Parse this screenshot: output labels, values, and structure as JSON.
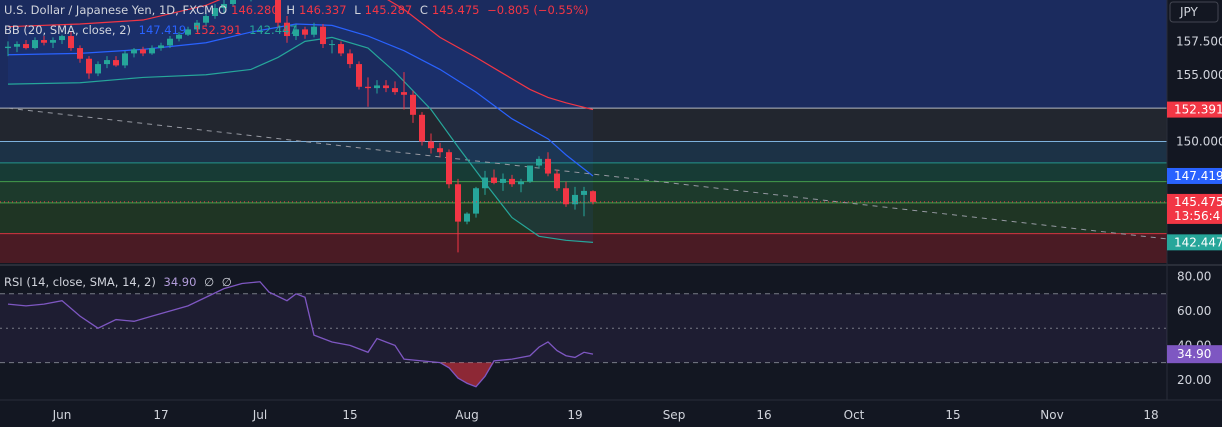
{
  "header": {
    "symbol": "U.S. Dollar / Japanese Yen, 1D, FXCM",
    "o_label": "O",
    "o_value": "146.280",
    "h_label": "H",
    "h_value": "146.337",
    "l_label": "L",
    "l_value": "145.287",
    "c_label": "C",
    "c_value": "145.475",
    "change": "−0.805 (−0.55%)"
  },
  "bb_legend": {
    "label": "BB (20, SMA, close, 2)",
    "basis": "147.419",
    "upper": "152.391",
    "lower": "142.447"
  },
  "rsi_legend": {
    "label": "RSI (14, close, SMA, 14, 2)",
    "value": "34.90",
    "extra1": "∅",
    "extra2": "∅"
  },
  "currency": "JPY",
  "colors": {
    "up": "#26a69a",
    "down": "#f23645",
    "basis": "#2962ff",
    "upper": "#f23645",
    "lower": "#26a69a",
    "rsi": "#7e57c2",
    "bg": "#131722",
    "text": "#d1d4dc"
  },
  "chart_data": [
    {
      "type": "candlestick",
      "title": "U.S. Dollar / Japanese Yen, 1D, FXCM",
      "y_ticks": [
        "157.500",
        "155.000",
        "150.000"
      ],
      "ylim": [
        140.9,
        160.6
      ],
      "x_ticks": [
        "Jun",
        "17",
        "Jul",
        "15",
        "Aug",
        "19",
        "Sep",
        "16",
        "Oct",
        "15",
        "Nov",
        "18"
      ],
      "price_labels": [
        {
          "value": 152.391,
          "text": "152.391",
          "color": "#f23645"
        },
        {
          "value": 147.419,
          "text": "147.419",
          "color": "#2962ff"
        },
        {
          "value": 145.475,
          "text": "145.475",
          "color": "#f23645",
          "sub": "13:56:4"
        },
        {
          "value": 142.447,
          "text": "142.447",
          "color": "#26a69a"
        }
      ],
      "horizontal_levels": [
        152.5,
        150.0,
        148.4,
        147.0,
        145.4,
        143.1
      ],
      "trendline": {
        "start": {
          "index": 0,
          "value": 152.5
        },
        "end": {
          "index": 138,
          "value": 142.0
        }
      },
      "candles": [
        {
          "o": 157.0,
          "h": 157.5,
          "l": 156.4,
          "c": 157.1
        },
        {
          "o": 157.1,
          "h": 157.5,
          "l": 156.7,
          "c": 157.3
        },
        {
          "o": 157.3,
          "h": 157.6,
          "l": 156.9,
          "c": 157.0
        },
        {
          "o": 157.0,
          "h": 157.8,
          "l": 156.9,
          "c": 157.6
        },
        {
          "o": 157.6,
          "h": 157.9,
          "l": 157.2,
          "c": 157.4
        },
        {
          "o": 157.4,
          "h": 157.8,
          "l": 157.0,
          "c": 157.6
        },
        {
          "o": 157.6,
          "h": 158.0,
          "l": 157.3,
          "c": 157.9
        },
        {
          "o": 157.9,
          "h": 158.2,
          "l": 156.8,
          "c": 157.0
        },
        {
          "o": 157.0,
          "h": 157.2,
          "l": 155.9,
          "c": 156.2
        },
        {
          "o": 156.2,
          "h": 156.4,
          "l": 154.7,
          "c": 155.1
        },
        {
          "o": 155.1,
          "h": 156.0,
          "l": 154.9,
          "c": 155.8
        },
        {
          "o": 155.8,
          "h": 156.4,
          "l": 155.5,
          "c": 156.1
        },
        {
          "o": 156.1,
          "h": 156.4,
          "l": 155.6,
          "c": 155.7
        },
        {
          "o": 155.7,
          "h": 156.8,
          "l": 155.5,
          "c": 156.6
        },
        {
          "o": 156.6,
          "h": 157.0,
          "l": 156.3,
          "c": 156.9
        },
        {
          "o": 156.9,
          "h": 157.1,
          "l": 156.4,
          "c": 156.6
        },
        {
          "o": 156.6,
          "h": 157.2,
          "l": 156.5,
          "c": 157.0
        },
        {
          "o": 157.0,
          "h": 157.4,
          "l": 156.8,
          "c": 157.2
        },
        {
          "o": 157.2,
          "h": 157.9,
          "l": 157.0,
          "c": 157.7
        },
        {
          "o": 157.7,
          "h": 158.2,
          "l": 157.5,
          "c": 158.0
        },
        {
          "o": 158.0,
          "h": 158.6,
          "l": 157.9,
          "c": 158.4
        },
        {
          "o": 158.4,
          "h": 159.1,
          "l": 158.2,
          "c": 158.9
        },
        {
          "o": 158.9,
          "h": 159.6,
          "l": 158.7,
          "c": 159.4
        },
        {
          "o": 159.4,
          "h": 160.3,
          "l": 159.2,
          "c": 160.0
        },
        {
          "o": 160.0,
          "h": 160.6,
          "l": 159.6,
          "c": 160.3
        },
        {
          "o": 160.3,
          "h": 161.5,
          "l": 160.1,
          "c": 161.2
        },
        {
          "o": 161.2,
          "h": 161.8,
          "l": 160.6,
          "c": 160.8
        },
        {
          "o": 160.8,
          "h": 161.6,
          "l": 160.5,
          "c": 161.3
        },
        {
          "o": 161.3,
          "h": 162.0,
          "l": 161.1,
          "c": 161.6
        },
        {
          "o": 161.6,
          "h": 161.8,
          "l": 160.6,
          "c": 160.7
        },
        {
          "o": 160.7,
          "h": 160.9,
          "l": 158.5,
          "c": 158.9
        },
        {
          "o": 158.9,
          "h": 159.4,
          "l": 157.4,
          "c": 157.9
        },
        {
          "o": 157.9,
          "h": 158.8,
          "l": 157.6,
          "c": 158.4
        },
        {
          "o": 158.4,
          "h": 158.6,
          "l": 157.7,
          "c": 158.0
        },
        {
          "o": 158.0,
          "h": 158.9,
          "l": 157.8,
          "c": 158.6
        },
        {
          "o": 158.6,
          "h": 158.8,
          "l": 157.0,
          "c": 157.3
        },
        {
          "o": 157.3,
          "h": 157.6,
          "l": 156.6,
          "c": 157.3
        },
        {
          "o": 157.3,
          "h": 157.5,
          "l": 156.4,
          "c": 156.6
        },
        {
          "o": 156.6,
          "h": 156.9,
          "l": 155.5,
          "c": 155.8
        },
        {
          "o": 155.8,
          "h": 156.0,
          "l": 153.9,
          "c": 154.1
        },
        {
          "o": 154.1,
          "h": 154.8,
          "l": 152.6,
          "c": 154.0
        },
        {
          "o": 154.0,
          "h": 154.6,
          "l": 153.6,
          "c": 154.2
        },
        {
          "o": 154.2,
          "h": 154.6,
          "l": 153.7,
          "c": 154.0
        },
        {
          "o": 154.0,
          "h": 154.5,
          "l": 153.5,
          "c": 153.7
        },
        {
          "o": 153.7,
          "h": 155.2,
          "l": 152.4,
          "c": 153.5
        },
        {
          "o": 153.5,
          "h": 153.8,
          "l": 151.4,
          "c": 152.0
        },
        {
          "o": 152.0,
          "h": 152.2,
          "l": 149.7,
          "c": 150.0
        },
        {
          "o": 150.0,
          "h": 150.6,
          "l": 149.1,
          "c": 149.5
        },
        {
          "o": 149.5,
          "h": 149.9,
          "l": 148.8,
          "c": 149.2
        },
        {
          "o": 149.2,
          "h": 149.4,
          "l": 146.5,
          "c": 146.8
        },
        {
          "o": 146.8,
          "h": 147.2,
          "l": 141.7,
          "c": 144.0
        },
        {
          "o": 144.0,
          "h": 144.7,
          "l": 143.8,
          "c": 144.6
        },
        {
          "o": 144.6,
          "h": 146.6,
          "l": 144.3,
          "c": 146.5
        },
        {
          "o": 146.5,
          "h": 147.8,
          "l": 146.0,
          "c": 147.3
        },
        {
          "o": 147.3,
          "h": 147.9,
          "l": 146.8,
          "c": 146.9
        },
        {
          "o": 146.9,
          "h": 147.6,
          "l": 146.3,
          "c": 147.2
        },
        {
          "o": 147.2,
          "h": 147.5,
          "l": 146.6,
          "c": 146.8
        },
        {
          "o": 146.8,
          "h": 147.2,
          "l": 146.2,
          "c": 147.0
        },
        {
          "o": 147.0,
          "h": 148.2,
          "l": 146.9,
          "c": 148.2
        },
        {
          "o": 148.2,
          "h": 148.9,
          "l": 148.0,
          "c": 148.7
        },
        {
          "o": 148.7,
          "h": 149.2,
          "l": 147.4,
          "c": 147.6
        },
        {
          "o": 147.6,
          "h": 147.9,
          "l": 146.3,
          "c": 146.5
        },
        {
          "o": 146.5,
          "h": 147.0,
          "l": 145.1,
          "c": 145.3
        },
        {
          "o": 145.3,
          "h": 146.6,
          "l": 144.9,
          "c": 146.0
        },
        {
          "o": 146.0,
          "h": 146.6,
          "l": 144.4,
          "c": 146.3
        },
        {
          "o": 146.28,
          "h": 146.337,
          "l": 145.287,
          "c": 145.475
        }
      ],
      "bb_upper": [
        {
          "index": 0,
          "value": 158.6
        },
        {
          "index": 8,
          "value": 158.8
        },
        {
          "index": 15,
          "value": 159.1
        },
        {
          "index": 22,
          "value": 160.2
        },
        {
          "index": 27,
          "value": 161.6
        },
        {
          "index": 30,
          "value": 162.3
        },
        {
          "index": 33,
          "value": 162.6
        },
        {
          "index": 36,
          "value": 162.3
        },
        {
          "index": 40,
          "value": 161.5
        },
        {
          "index": 44,
          "value": 159.9
        },
        {
          "index": 48,
          "value": 157.8
        },
        {
          "index": 52,
          "value": 156.3
        },
        {
          "index": 55,
          "value": 155.1
        },
        {
          "index": 58,
          "value": 153.9
        },
        {
          "index": 60,
          "value": 153.3
        },
        {
          "index": 62,
          "value": 152.9
        },
        {
          "index": 65,
          "value": 152.391
        }
      ],
      "bb_basis": [
        {
          "index": 0,
          "value": 156.5
        },
        {
          "index": 8,
          "value": 156.6
        },
        {
          "index": 15,
          "value": 156.9
        },
        {
          "index": 22,
          "value": 157.4
        },
        {
          "index": 27,
          "value": 158.2
        },
        {
          "index": 32,
          "value": 158.8
        },
        {
          "index": 36,
          "value": 158.7
        },
        {
          "index": 40,
          "value": 157.9
        },
        {
          "index": 44,
          "value": 156.8
        },
        {
          "index": 48,
          "value": 155.4
        },
        {
          "index": 52,
          "value": 153.7
        },
        {
          "index": 56,
          "value": 151.7
        },
        {
          "index": 60,
          "value": 150.2
        },
        {
          "index": 62,
          "value": 149.0
        },
        {
          "index": 65,
          "value": 147.419
        }
      ],
      "bb_lower": [
        {
          "index": 0,
          "value": 154.3
        },
        {
          "index": 8,
          "value": 154.4
        },
        {
          "index": 15,
          "value": 154.8
        },
        {
          "index": 22,
          "value": 155.0
        },
        {
          "index": 27,
          "value": 155.4
        },
        {
          "index": 30,
          "value": 156.3
        },
        {
          "index": 33,
          "value": 157.5
        },
        {
          "index": 36,
          "value": 157.8
        },
        {
          "index": 40,
          "value": 157.0
        },
        {
          "index": 43,
          "value": 155.2
        },
        {
          "index": 47,
          "value": 152.4
        },
        {
          "index": 50,
          "value": 149.6
        },
        {
          "index": 53,
          "value": 146.9
        },
        {
          "index": 56,
          "value": 144.3
        },
        {
          "index": 59,
          "value": 142.9
        },
        {
          "index": 62,
          "value": 142.6
        },
        {
          "index": 65,
          "value": 142.447
        }
      ]
    },
    {
      "type": "line",
      "title": "RSI (14, close, SMA, 14, 2)",
      "y_ticks": [
        "80.00",
        "60.00",
        "40.00",
        "20.00"
      ],
      "ylim": [
        10,
        85
      ],
      "levels": [
        70,
        50,
        30
      ],
      "last_value": "34.90",
      "rsi": [
        {
          "index": 0,
          "value": 64
        },
        {
          "index": 2,
          "value": 63
        },
        {
          "index": 4,
          "value": 64
        },
        {
          "index": 6,
          "value": 66
        },
        {
          "index": 8,
          "value": 57
        },
        {
          "index": 10,
          "value": 50
        },
        {
          "index": 12,
          "value": 55
        },
        {
          "index": 14,
          "value": 54
        },
        {
          "index": 16,
          "value": 57
        },
        {
          "index": 18,
          "value": 60
        },
        {
          "index": 20,
          "value": 63
        },
        {
          "index": 22,
          "value": 68
        },
        {
          "index": 24,
          "value": 73
        },
        {
          "index": 26,
          "value": 76
        },
        {
          "index": 28,
          "value": 77
        },
        {
          "index": 29,
          "value": 71
        },
        {
          "index": 31,
          "value": 66
        },
        {
          "index": 32,
          "value": 70
        },
        {
          "index": 33,
          "value": 68
        },
        {
          "index": 34,
          "value": 46
        },
        {
          "index": 36,
          "value": 42
        },
        {
          "index": 38,
          "value": 40
        },
        {
          "index": 40,
          "value": 36
        },
        {
          "index": 41,
          "value": 44
        },
        {
          "index": 42,
          "value": 42
        },
        {
          "index": 43,
          "value": 40
        },
        {
          "index": 44,
          "value": 32
        },
        {
          "index": 46,
          "value": 31
        },
        {
          "index": 48,
          "value": 30
        },
        {
          "index": 49,
          "value": 27
        },
        {
          "index": 50,
          "value": 21
        },
        {
          "index": 51,
          "value": 18
        },
        {
          "index": 52,
          "value": 16
        },
        {
          "index": 53,
          "value": 22
        },
        {
          "index": 54,
          "value": 31
        },
        {
          "index": 56,
          "value": 32
        },
        {
          "index": 58,
          "value": 34
        },
        {
          "index": 59,
          "value": 39
        },
        {
          "index": 60,
          "value": 42
        },
        {
          "index": 61,
          "value": 37
        },
        {
          "index": 62,
          "value": 34
        },
        {
          "index": 63,
          "value": 33
        },
        {
          "index": 64,
          "value": 36
        },
        {
          "index": 65,
          "value": 34.9
        }
      ]
    }
  ]
}
